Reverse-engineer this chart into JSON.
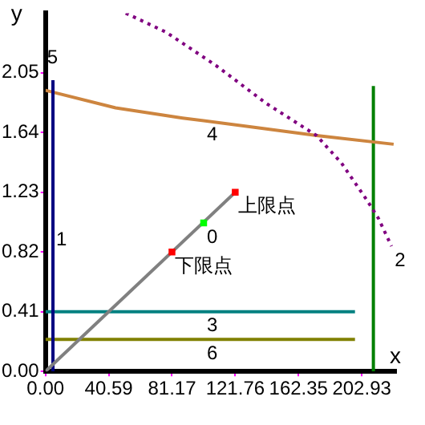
{
  "chart_data": {
    "type": "line",
    "xlabel": "x",
    "ylabel": "y",
    "xlim": [
      0,
      225
    ],
    "ylim": [
      0,
      2.46
    ],
    "xticks": [
      {
        "value": 0,
        "label": "0.00"
      },
      40.59,
      81.17,
      121.76,
      162.35,
      202.93
    ],
    "yticks": [
      {
        "value": 0,
        "label": "0.00"
      },
      0.41,
      0.82,
      1.23,
      1.64,
      2.05
    ],
    "grid": false,
    "legend": false,
    "marker": "none",
    "series": [
      {
        "color": "#808080",
        "x": [
          0,
          121.76
        ],
        "values": [
          0,
          1.23
        ]
      },
      {
        "color": "#000080",
        "x": [
          4.8,
          4.8
        ],
        "values": [
          0,
          2.0
        ]
      },
      {
        "color": "#800080",
        "line_style": "dotted",
        "x": [
          51.5,
          77.3,
          109.5,
          141.7,
          173.9,
          190,
          206,
          213.7,
          222
        ],
        "values": [
          2.46,
          2.33,
          2.1,
          1.84,
          1.62,
          1.43,
          1.18,
          1.05,
          0.86
        ]
      },
      {
        "color": "#008080",
        "x": [
          0,
          198.6
        ],
        "values": [
          0.41,
          0.41
        ]
      },
      {
        "color": "#cd853f",
        "x": [
          0,
          45,
          88,
          131,
          174,
          223.4
        ],
        "values": [
          1.93,
          1.81,
          1.74,
          1.68,
          1.62,
          1.56
        ]
      },
      {
        "color": "#808000",
        "x": [
          0,
          198.6
        ],
        "values": [
          0.22,
          0.22
        ]
      },
      {
        "color": "#008000",
        "x": [
          210.4,
          210.4
        ],
        "values": [
          0,
          1.96
        ]
      },
      {
        "type": "scatter",
        "marker": "square",
        "colors": [
          "#ff0000",
          "#00ff00",
          "#ff0000"
        ],
        "x": [
          121.76,
          101.5,
          81.17
        ],
        "values": [
          1.23,
          1.02,
          0.82
        ]
      }
    ],
    "annotations": [
      {
        "text": "0",
        "x": 101.5,
        "y": 1.02
      },
      {
        "text": "1",
        "x": 4.8,
        "y": 1.0
      },
      {
        "text": "2",
        "x": 222,
        "y": 0.86
      },
      {
        "text": "3",
        "x": 101.5,
        "y": 0.41
      },
      {
        "text": "4",
        "x": 101.5,
        "y": 1.72
      },
      "5",
      {
        "text": "6",
        "x": 101.5,
        "y": 0.22
      },
      {
        "text": "上限点",
        "x": 121.76,
        "y": 1.23
      },
      {
        "text": "下限点",
        "x": 81.17,
        "y": 0.82
      }
    ]
  }
}
